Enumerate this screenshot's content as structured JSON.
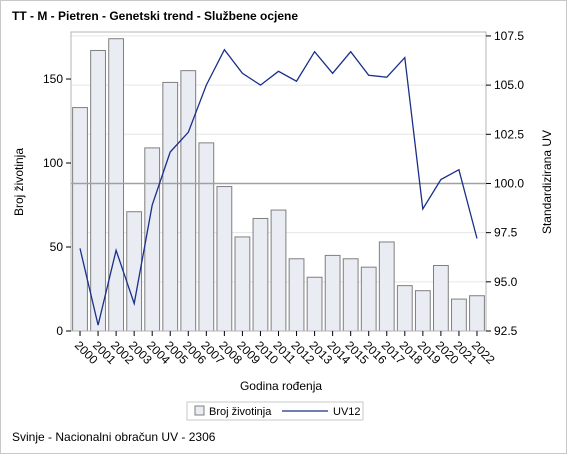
{
  "title": "TT - M - Pietren - Genetski trend - Službene ocjene",
  "footnote": "Svinje - Nacionalni obračun UV - 2306",
  "chart_data": {
    "type": "bar",
    "title": "TT - M - Pietren - Genetski trend - Službene ocjene",
    "xlabel": "Godina rođenja",
    "ylabel": "Broj životinja",
    "y2label": "Standardizirana UV",
    "ylim": [
      0,
      178
    ],
    "y2lim": [
      92.5,
      107.7
    ],
    "yticks": [
      0,
      50,
      100,
      150
    ],
    "y2ticks": [
      "92.5",
      "95.0",
      "97.5",
      "100.0",
      "102.5",
      "105.0",
      "107.5"
    ],
    "reference_line": 100,
    "categories": [
      "2000",
      "2001",
      "2002",
      "2003",
      "2004",
      "2005",
      "2006",
      "2007",
      "2008",
      "2009",
      "2010",
      "2011",
      "2012",
      "2013",
      "2014",
      "2015",
      "2016",
      "2017",
      "2018",
      "2019",
      "2020",
      "2021",
      "2022"
    ],
    "series": [
      {
        "name": "Broj životinja",
        "type": "bar",
        "axis": "left",
        "values": [
          133,
          167,
          174,
          71,
          109,
          148,
          155,
          112,
          86,
          56,
          67,
          72,
          43,
          32,
          45,
          43,
          38,
          53,
          27,
          24,
          39,
          19,
          21
        ]
      },
      {
        "name": "UV12",
        "type": "line",
        "axis": "right",
        "values": [
          96.7,
          92.8,
          96.6,
          93.9,
          98.9,
          101.6,
          102.6,
          105.0,
          106.8,
          105.6,
          105.0,
          105.7,
          105.2,
          106.7,
          105.6,
          106.7,
          105.5,
          105.4,
          106.4,
          98.7,
          100.2,
          100.7,
          97.2
        ]
      }
    ],
    "legend": "bottom-center",
    "colors": {
      "bar_fill": "#e9ecf2",
      "bar_stroke": "#7f7f7f",
      "line": "#1a2f8a",
      "reference": "#a0a0a0",
      "grid": "#e6e6e6",
      "axis": "#b4b4b4"
    }
  }
}
